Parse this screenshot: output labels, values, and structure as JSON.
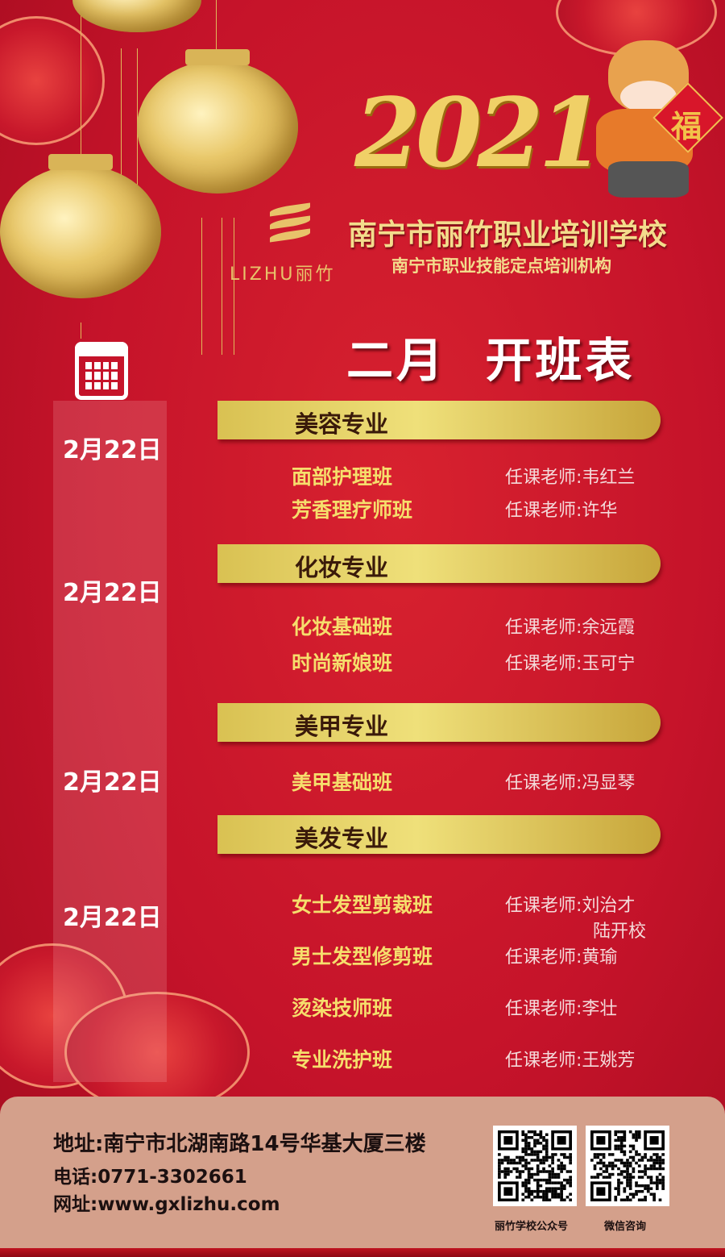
{
  "header": {
    "year": "2021",
    "logo_text": "LIZHU丽竹",
    "school_name": "南宁市丽竹职业培训学校",
    "institution": "南宁市职业技能定点培训机构",
    "fu_character": "福"
  },
  "title": "二月  开班表",
  "majors": [
    {
      "date": "2月22日",
      "name": "美容专业",
      "courses": [
        {
          "name": "面部护理班",
          "teacher": "任课老师:韦红兰"
        },
        {
          "name": "芳香理疗师班",
          "teacher": "任课老师:许华"
        }
      ]
    },
    {
      "date": "2月22日",
      "name": "化妆专业",
      "courses": [
        {
          "name": "化妆基础班",
          "teacher": "任课老师:余远霞"
        },
        {
          "name": "时尚新娘班",
          "teacher": "任课老师:玉可宁"
        }
      ]
    },
    {
      "date": "2月22日",
      "name": "美甲专业",
      "courses": [
        {
          "name": "美甲基础班",
          "teacher": "任课老师:冯显琴"
        }
      ]
    },
    {
      "date": "2月22日",
      "name": "美发专业",
      "courses": [
        {
          "name": "女士发型剪裁班",
          "teacher": "任课老师:刘治才",
          "teacher2": "陆开校"
        },
        {
          "name": "男士发型修剪班",
          "teacher": "任课老师:黄瑜"
        },
        {
          "name": "烫染技师班",
          "teacher": "任课老师:李壮"
        },
        {
          "name": "专业洗护班",
          "teacher": "任课老师:王姚芳"
        }
      ]
    }
  ],
  "footer": {
    "address": "地址:南宁市北湖南路14号华基大厦三楼",
    "phone": "电话:0771-3302661",
    "website": "网址:www.gxlizhu.com",
    "qr1_caption": "丽竹学校公众号",
    "qr2_caption": "微信咨询"
  },
  "colors": {
    "background": "#c5132a",
    "gold": "#efe07a",
    "footer": "#d4a08b"
  }
}
